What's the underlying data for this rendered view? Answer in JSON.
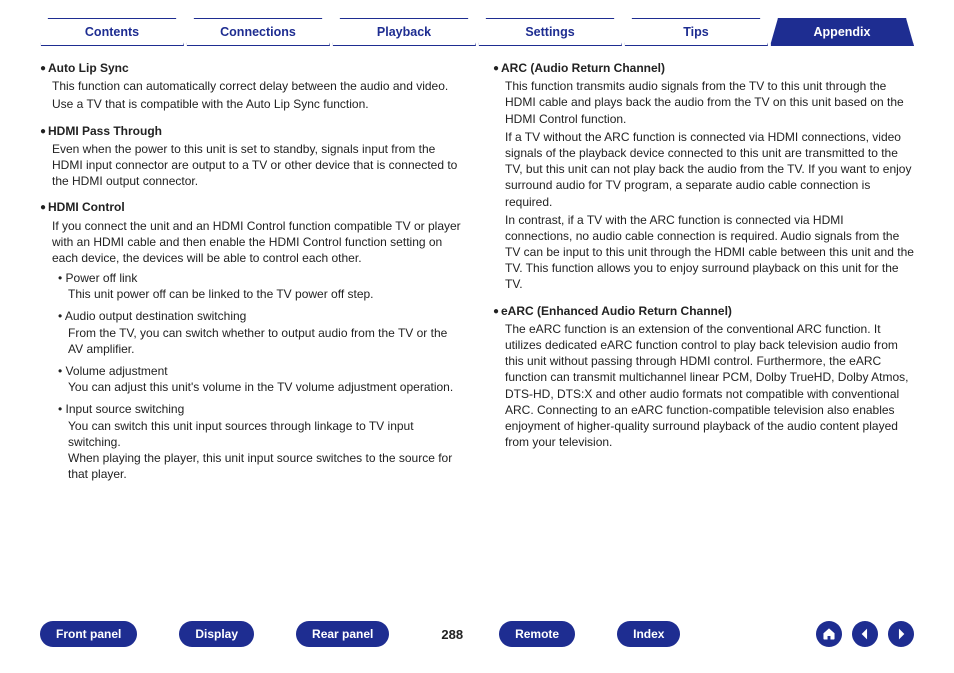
{
  "tabs": {
    "items": [
      {
        "label": "Contents",
        "selected": false
      },
      {
        "label": "Connections",
        "selected": false
      },
      {
        "label": "Playback",
        "selected": false
      },
      {
        "label": "Settings",
        "selected": false
      },
      {
        "label": "Tips",
        "selected": false
      },
      {
        "label": "Appendix",
        "selected": true
      }
    ],
    "colors": {
      "fg": "#1e2d91",
      "bg": "#ffffff",
      "sel_bg": "#1e2d91",
      "sel_fg": "#ffffff"
    }
  },
  "left_column": [
    {
      "title": "Auto Lip Sync",
      "paras": [
        "This function can automatically correct delay between the audio and video.",
        "Use a TV that is compatible with the Auto Lip Sync function."
      ]
    },
    {
      "title": "HDMI Pass Through",
      "paras": [
        "Even when the power to this unit is set to standby, signals input from the HDMI input connector are output to a TV or other device that is connected to the HDMI output connector."
      ]
    },
    {
      "title": "HDMI Control",
      "paras": [
        "If you connect the unit and an HDMI Control function compatible TV or player with an HDMI cable and then enable the HDMI Control function setting on each device, the devices will be able to control each other."
      ],
      "subs": [
        {
          "title": "Power off link",
          "desc": "This unit power off can be linked to the TV power off step."
        },
        {
          "title": "Audio output destination switching",
          "desc": "From the TV, you can switch whether to output audio from the TV or the AV amplifier."
        },
        {
          "title": "Volume adjustment",
          "desc": "You can adjust this unit's volume in the TV volume adjustment operation."
        },
        {
          "title": "Input source switching",
          "desc": "You can switch this unit input sources through linkage to TV input switching.\nWhen playing the player, this unit input source switches to the source for that player."
        }
      ]
    }
  ],
  "right_column": [
    {
      "title": "ARC (Audio Return Channel)",
      "paras": [
        "This function transmits audio signals from the TV to this unit through the HDMI cable and plays back the audio from the TV on this unit based on the HDMI Control function.",
        "If a TV without the ARC function is connected via HDMI connections, video signals of the playback device connected to this unit are transmitted to the TV, but this unit can not play back the audio from the TV. If you want to enjoy surround audio for TV program, a separate audio cable connection is required.",
        "In contrast, if a TV with the ARC function is connected via HDMI connections, no audio cable connection is required. Audio signals from the TV can be input to this unit through the HDMI cable between this unit and the TV. This function allows you to enjoy surround playback on this unit for the TV."
      ]
    },
    {
      "title": "eARC (Enhanced Audio Return Channel)",
      "paras": [
        "The eARC function is an extension of the conventional ARC function. It utilizes dedicated eARC function control to play back television audio from this unit without passing through HDMI control. Furthermore, the eARC function can transmit multichannel linear PCM, Dolby TrueHD, Dolby Atmos, DTS-HD, DTS:X and other audio formats not compatible with conventional ARC. Connecting to an eARC function-compatible television also enables enjoyment of higher-quality surround playback of the audio content played from your television."
      ]
    }
  ],
  "bottom": {
    "buttons": [
      "Front panel",
      "Display",
      "Rear panel"
    ],
    "buttons_right": [
      "Remote",
      "Index"
    ],
    "page_number": "288",
    "colors": {
      "pill_bg": "#1e2d91",
      "pill_fg": "#ffffff"
    },
    "nav_icons": [
      "home",
      "back",
      "forward"
    ]
  },
  "typography": {
    "body_fontsize": 12,
    "heading_fontsize": 12,
    "tab_fontsize": 12.5,
    "page_num_fontsize": 13,
    "line_height": 1.35
  }
}
